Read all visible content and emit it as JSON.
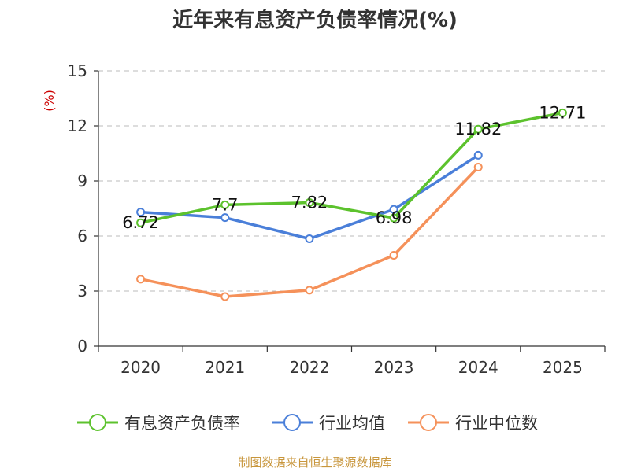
{
  "chart_data": {
    "type": "line",
    "title": "近年来有息资产负债率情况(%)",
    "ylabel": "(%)",
    "xlabel": "",
    "categories": [
      "2020",
      "2021",
      "2022",
      "2023",
      "2024",
      "2025"
    ],
    "ylim": [
      0,
      15
    ],
    "yticks": [
      0,
      3,
      6,
      9,
      12,
      15
    ],
    "grid": true,
    "legend_position": "bottom",
    "series": [
      {
        "name": "有息资产负债率",
        "color": "#5cc22d",
        "values": [
          6.72,
          7.7,
          7.82,
          6.98,
          11.82,
          12.71
        ],
        "labels": [
          "6.72",
          "7.7",
          "7.82",
          "6.98",
          "11.82",
          "12.71"
        ]
      },
      {
        "name": "行业均值",
        "color": "#4a7fd9",
        "values": [
          7.3,
          7.0,
          5.85,
          7.45,
          10.4,
          null
        ]
      },
      {
        "name": "行业中位数",
        "color": "#f5915a",
        "values": [
          3.65,
          2.7,
          3.05,
          4.95,
          9.75,
          null
        ]
      }
    ]
  },
  "ylabel_color": "#cc0000",
  "source": {
    "text": "制图数据来自恒生聚源数据库",
    "color": "#c8963c"
  }
}
